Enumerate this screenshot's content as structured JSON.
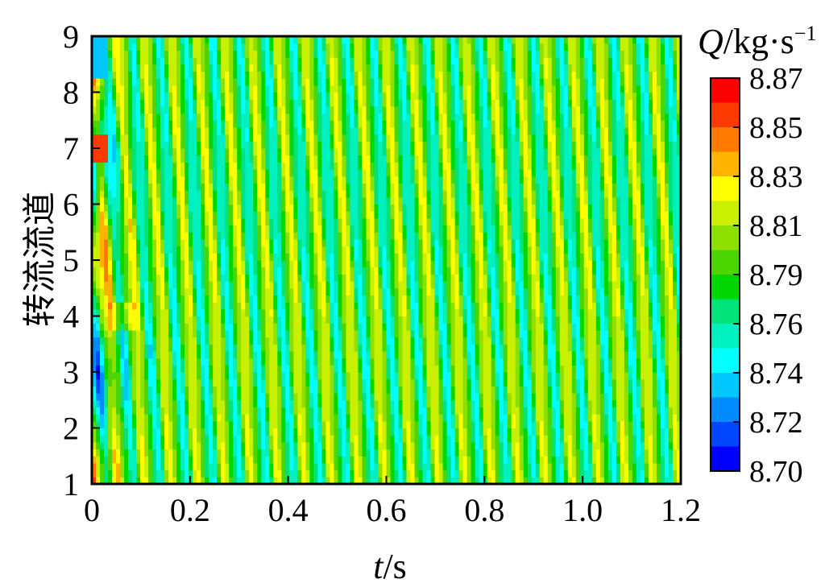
{
  "chart_data": {
    "type": "heatmap",
    "x": {
      "ticks": [
        "0",
        "0.2",
        "0.4",
        "0.6",
        "0.8",
        "1.0",
        "1.2"
      ],
      "tick_values": [
        0,
        0.2,
        0.4,
        0.6,
        0.8,
        1.0,
        1.2
      ],
      "range": [
        0,
        1.2
      ],
      "label_var": "t",
      "label_unit": "/s"
    },
    "y": {
      "ticks": [
        "1",
        "2",
        "3",
        "4",
        "5",
        "6",
        "7",
        "8",
        "9"
      ],
      "tick_values": [
        1,
        2,
        3,
        4,
        5,
        6,
        7,
        8,
        9
      ],
      "range": [
        1,
        9
      ],
      "label": "转流流道"
    },
    "colorbar": {
      "title_var": "Q",
      "title_unit": "/kg·s",
      "title_exp": "−1",
      "labels": [
        "8.87",
        "8.85",
        "8.83",
        "8.81",
        "8.79",
        "8.76",
        "8.74",
        "8.72",
        "8.70"
      ],
      "range": [
        8.7,
        8.87
      ],
      "colors": [
        "#ff0000",
        "#ff3a00",
        "#ff7a00",
        "#ffb300",
        "#ffff00",
        "#c8f000",
        "#8ee000",
        "#4cd600",
        "#00d600",
        "#00e27a",
        "#00f0c0",
        "#00ffff",
        "#00c8ff",
        "#008cff",
        "#0046ff",
        "#0000ff"
      ]
    },
    "pattern": {
      "description_values": "periodic diagonal bands of mass flow rate Q",
      "period_s": 0.0545,
      "mean": 8.785,
      "amplitude": 0.045
    }
  }
}
